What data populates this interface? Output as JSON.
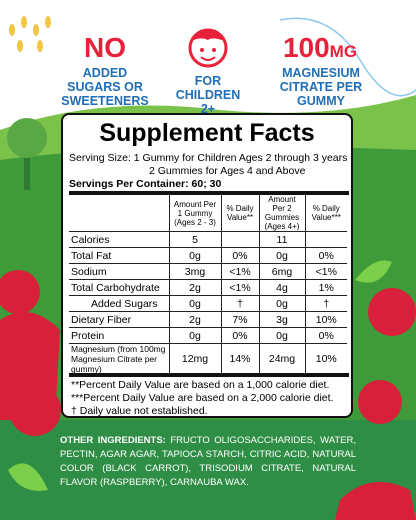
{
  "header": {
    "left": {
      "big": "NO",
      "small": "ADDED SUGARS OR SWEETENERS"
    },
    "center": {
      "small": "FOR CHILDREN 2+"
    },
    "right": {
      "big": "100",
      "unit": "MG",
      "small": "MAGNESIUM CITRATE PER GUMMY"
    }
  },
  "facts": {
    "title": "Supplement Facts",
    "serving": [
      "Serving Size: 1 Gummy for Children Ages 2 through 3 years",
      "2 Gummies for Ages 4 and Above"
    ],
    "servings_per_container": "Servings Per Container: 60; 30",
    "columns": [
      "Amount Per 1 Gummy (Ages 2 - 3)",
      "% Daily Value**",
      "Amount Per 2 Gummies (Ages 4+)",
      "% Daily Value***"
    ],
    "rows": [
      [
        "Calories",
        "5",
        null,
        "11",
        null
      ],
      [
        "Total Fat",
        "0g",
        "0%",
        "0g",
        "0%"
      ],
      [
        "Sodium",
        "3mg",
        "<1%",
        "6mg",
        "<1%"
      ],
      [
        "Total Carbohydrate",
        "2g",
        "<1%",
        "4g",
        "1%"
      ],
      [
        "Added Sugars",
        "0g",
        "†",
        "0g",
        "†"
      ],
      [
        "Dietary Fiber",
        "2g",
        "7%",
        "3g",
        "10%"
      ],
      [
        "Protein",
        "0g",
        "0%",
        "0g",
        "0%"
      ],
      [
        "Magnesium (from 100mg Magnesium Citrate per gummy)",
        "12mg",
        "14%",
        "24mg",
        "10%"
      ]
    ],
    "footnotes": [
      "**Percent Daily Value are based on a 1,000 calorie diet.",
      "***Percent Daily Value are based on a 2,000 calorie diet.",
      "† Daily value not established."
    ]
  },
  "ingredients": {
    "label": "OTHER INGREDIENTS:",
    "text": "FRUCTO OLIGOSACCHARIDES, WATER, PECTIN, AGAR AGAR, TAPIOCA STARCH, CITRIC ACID, NATURAL COLOR (BLACK CARROT), TRISODIUM CITRATE, NATURAL FLAVOR (RASPBERRY), CARNAUBA WAX."
  }
}
